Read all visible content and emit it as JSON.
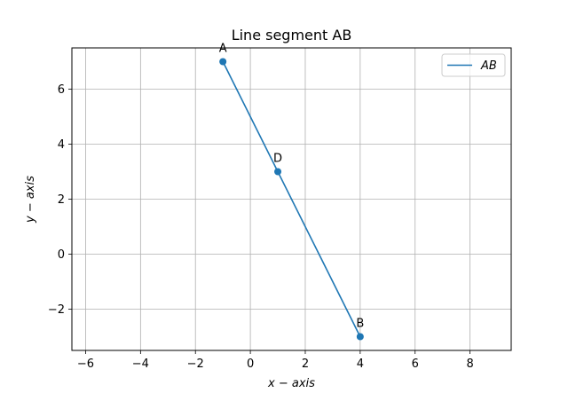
{
  "chart_data": {
    "type": "line",
    "title": "Line segment AB",
    "xlabel": "x − axis",
    "ylabel": "y − axis",
    "xlim": [
      -6.5,
      9.5
    ],
    "ylim": [
      -3.5,
      7.5
    ],
    "xticks": [
      -6,
      -4,
      -2,
      0,
      2,
      4,
      6,
      8
    ],
    "yticks": [
      -2,
      0,
      2,
      4,
      6
    ],
    "xtick_labels": [
      "−6",
      "−4",
      "−2",
      "0",
      "2",
      "4",
      "6",
      "8"
    ],
    "ytick_labels": [
      "−2",
      "0",
      "2",
      "4",
      "6"
    ],
    "grid": true,
    "legend_position": "top-right",
    "series": [
      {
        "name": "AB",
        "color": "#1f77b4",
        "x": [
          -1,
          4
        ],
        "y": [
          7,
          -3
        ]
      }
    ],
    "points": [
      {
        "label": "A",
        "x": -1,
        "y": 7
      },
      {
        "label": "D",
        "x": 1,
        "y": 3
      },
      {
        "label": "B",
        "x": 4,
        "y": -3
      }
    ]
  }
}
